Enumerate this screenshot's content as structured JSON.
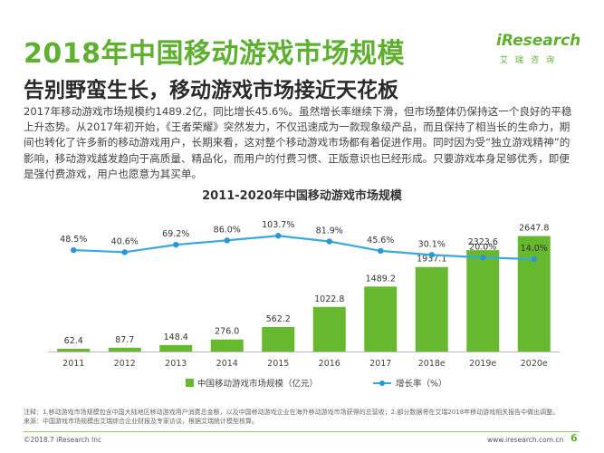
{
  "header": {
    "title": "2018年中国移动游戏市场规模",
    "subtitle": "告别野蛮生长，移动游戏市场接近天花板"
  },
  "logo": {
    "word": "iResearch",
    "cn": "艾瑞咨询"
  },
  "body_text": "2017年移动游戏市场规模约1489.2亿，同比增长45.6%。虽然增长率继续下滑，但市场整体仍保持这一个良好的平稳上升态势。从2017年初开始，《王者荣耀》突然发力，不仅迅速成为一款现象级产品，而且保持了相当长的生命力，期间也转化了许多新的移动游戏用户，长期来看，这对整个移动游戏市场都有着促进作用。同时因为受“独立游戏精神”的影响，移动游戏越发趋向于高质量、精品化，而用户的付费习惯、正版意识也已经形成。只要游戏本身足够优秀，即便是强付费游戏，用户也愿意为其买单。",
  "chart_data": {
    "type": "bar",
    "title": "2011-2020年中国移动游戏市场规模",
    "categories": [
      "2011",
      "2012",
      "2013",
      "2014",
      "2015",
      "2016",
      "2017",
      "2018e",
      "2019e",
      "2020e"
    ],
    "series": [
      {
        "name": "中国移动游戏市场规模（亿元）",
        "type": "bar",
        "values": [
          62.4,
          87.7,
          148.4,
          276.0,
          562.2,
          1022.8,
          1489.2,
          1937.1,
          2323.6,
          2647.8
        ],
        "labels": [
          "62.4",
          "87.7",
          "148.4",
          "276.0",
          "562.2",
          "1022.8",
          "1489.2",
          "1937.1",
          "2323.6",
          "2647.8"
        ]
      },
      {
        "name": "增长率（%）",
        "type": "line",
        "values": [
          48.5,
          40.6,
          69.2,
          86.0,
          103.7,
          81.9,
          45.6,
          30.1,
          20.0,
          14.0
        ],
        "labels": [
          "48.5%",
          "40.6%",
          "69.2%",
          "86.0%",
          "103.7%",
          "81.9%",
          "45.6%",
          "30.1%",
          "20.0%",
          "14.0%"
        ]
      }
    ],
    "bar_range": [
      0,
      2700
    ],
    "line_range": [
      0,
      110
    ],
    "legend_placement": "bottom",
    "grid": false,
    "colors": {
      "bar": "#66b82e",
      "line": "#3aa7df",
      "marker": "#2b96d6"
    }
  },
  "footnotes": [
    "注释：1.移动游戏市场规模包含中国大陆地区移动游戏用户消费总金额，以及中国移动游戏企业在海外移动游戏市场获得的总营收；2.部分数据将在艾瑞2018年移动游戏相关报告中做出调整。",
    "来源：中国游戏市场规模由艾瑞综合企业财报及专家访谈，根据艾瑞统计模型核算。"
  ],
  "footer": {
    "copyright": "©2018.7 iResearch Inc",
    "url": "www.iresearch.com.cn",
    "page": "6"
  }
}
